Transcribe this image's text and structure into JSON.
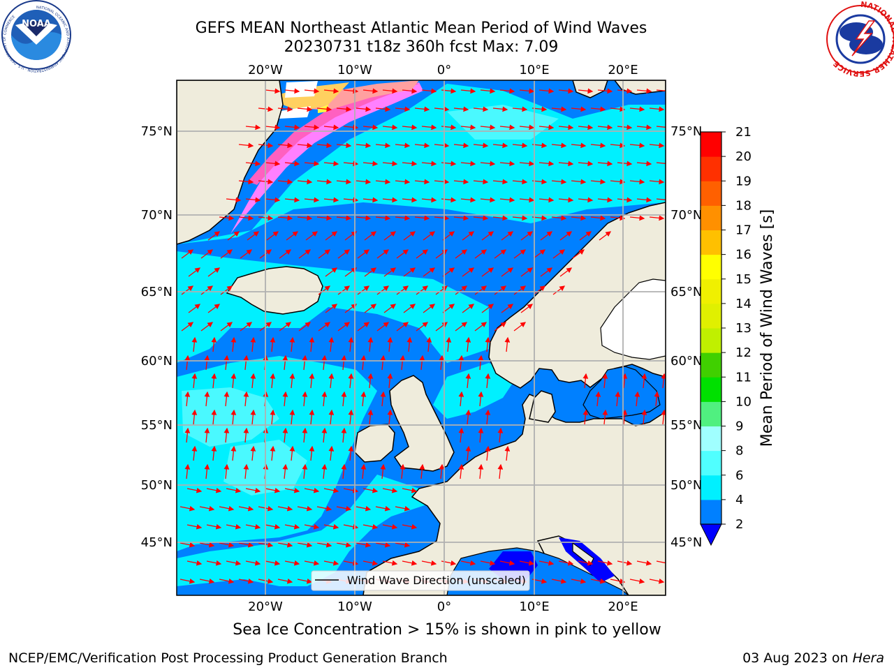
{
  "title": {
    "line1": "GEFS MEAN Northeast Atlantic Mean Period of Wind Waves",
    "line2": "20230731 t18z 360h fcst   Max: 7.09"
  },
  "logos": {
    "left": {
      "name": "noaa-logo",
      "center_text": "NOAA",
      "ring_text": "NATIONAL OCEANIC AND ATMOSPHERIC ADMINISTRATION · U.S. DEPARTMENT OF COMMERCE"
    },
    "right": {
      "name": "nws-logo",
      "ring_text": "NATIONAL WEATHER SERVICE"
    }
  },
  "map": {
    "projection": "lat-lon",
    "lon_ticks_top": [
      "20°W",
      "10°W",
      "0°",
      "10°E",
      "20°E"
    ],
    "lon_ticks_bottom": [
      "20°W",
      "10°W",
      "0°",
      "10°E",
      "20°E"
    ],
    "lat_ticks_left": [
      "75°N",
      "70°N",
      "65°N",
      "60°N",
      "55°N",
      "50°N",
      "45°N"
    ],
    "lat_ticks_right": [
      "75°N",
      "70°N",
      "65°N",
      "60°N",
      "55°N",
      "50°N",
      "45°N"
    ],
    "legend_label": "Wind Wave Direction (unscaled)",
    "land_color": "#efecdc",
    "grid_color": "#b0b0b0",
    "arrow_color": "#ff0000"
  },
  "colorbar": {
    "label": "Mean Period of Wind Waves [s]",
    "ticks": [
      "2",
      "4",
      "6",
      "8",
      "9",
      "10",
      "11",
      "12",
      "13",
      "14",
      "15",
      "16",
      "17",
      "18",
      "19",
      "20",
      "21"
    ],
    "colors": [
      "#0080ff",
      "#00f0ff",
      "#50ffff",
      "#a0ffff",
      "#50f080",
      "#00e000",
      "#40d000",
      "#c0f000",
      "#e0f000",
      "#f0f000",
      "#ffff00",
      "#ffc000",
      "#ff9000",
      "#ff6000",
      "#ff3000",
      "#ff0000"
    ],
    "extend_min_color": "#0000ff"
  },
  "sea_ice_note": "Sea Ice Concentration > 15% is shown in pink to yellow",
  "footer": {
    "left": "NCEP/EMC/Verification Post Processing Product Generation Branch",
    "right_prefix": "03 Aug 2023 on ",
    "right_host": "Hera"
  }
}
